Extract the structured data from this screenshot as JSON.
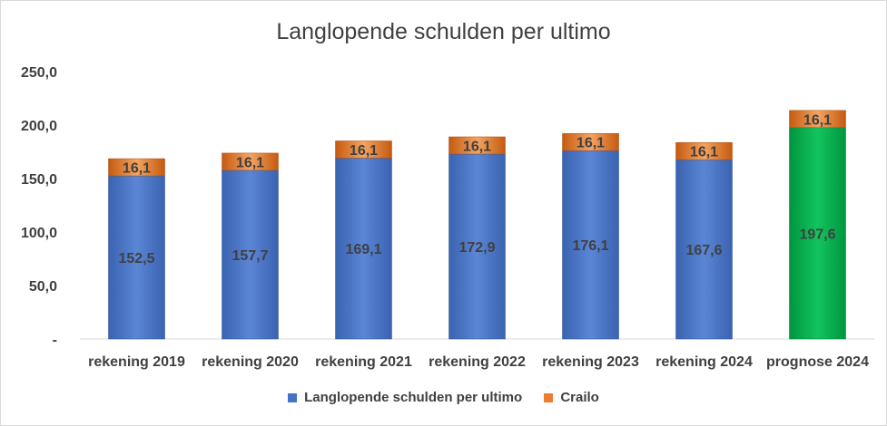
{
  "chart_data": {
    "type": "bar",
    "stacked": true,
    "title": "Langlopende schulden per ultimo",
    "categories": [
      "rekening 2019",
      "rekening 2020",
      "rekening 2021",
      "rekening 2022",
      "rekening 2023",
      "rekening 2024",
      "prognose 2024"
    ],
    "series": [
      {
        "name": "Langlopende schulden per ultimo",
        "values": [
          152.5,
          157.7,
          169.1,
          172.9,
          176.1,
          167.6,
          197.6
        ],
        "labels": [
          "152,5",
          "157,7",
          "169,1",
          "172,9",
          "176,1",
          "167,6",
          "197,6"
        ],
        "color": "#4472c4",
        "highlight_color": "#00b050",
        "highlight_index": 6
      },
      {
        "name": "Crailo",
        "values": [
          16.1,
          16.1,
          16.1,
          16.1,
          16.1,
          16.1,
          16.1
        ],
        "labels": [
          "16,1",
          "16,1",
          "16,1",
          "16,1",
          "16,1",
          "16,1",
          "16,1"
        ],
        "color": "#ed7d31"
      }
    ],
    "y_ticks": [
      "-",
      "50,0",
      "100,0",
      "150,0",
      "200,0",
      "250,0"
    ],
    "ylim": [
      0,
      250
    ],
    "grid": false,
    "legend_position": "bottom"
  }
}
